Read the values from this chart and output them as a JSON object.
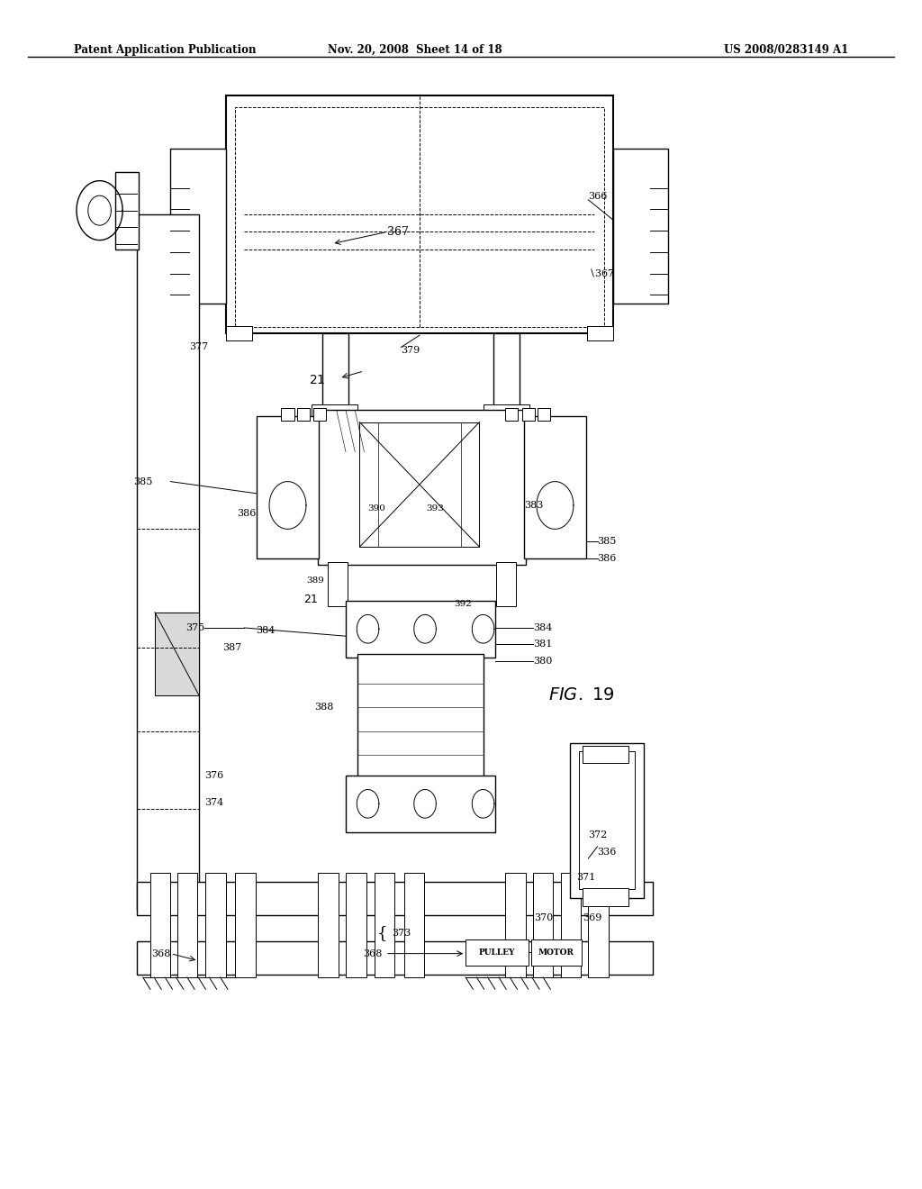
{
  "title_left": "Patent Application Publication",
  "title_mid": "Nov. 20, 2008  Sheet 14 of 18",
  "title_right": "US 2008/0283149 A1",
  "fig_label": "FIG. 19",
  "background_color": "#ffffff",
  "line_color": "#000000"
}
